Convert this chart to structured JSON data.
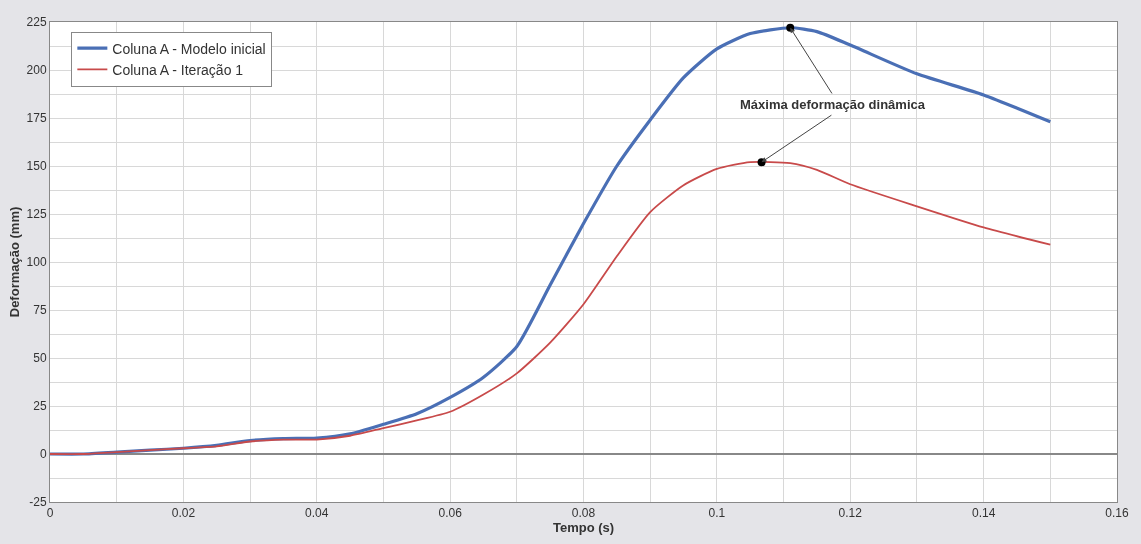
{
  "chart_data": {
    "type": "line",
    "xlabel": "Tempo (s)",
    "ylabel": "Deformação (mm)",
    "xlim": [
      0,
      0.16
    ],
    "ylim": [
      -25,
      225
    ],
    "xticks": [
      0,
      {
        "value": 0.01,
        "label": null
      },
      0.02,
      {
        "value": 0.03,
        "label": null
      },
      0.04,
      {
        "value": 0.05,
        "label": null
      },
      0.06,
      {
        "value": 0.07,
        "label": null
      },
      0.08,
      {
        "value": 0.09,
        "label": null
      },
      0.1,
      {
        "value": 0.11,
        "label": null
      },
      0.12,
      {
        "value": 0.13,
        "label": null
      },
      0.14,
      {
        "value": 0.15,
        "label": null
      },
      0.16
    ],
    "yticks": [
      -25,
      {
        "value": -12.5,
        "label": null
      },
      0,
      {
        "value": 12.5,
        "label": null
      },
      25,
      {
        "value": 37.5,
        "label": null
      },
      50,
      {
        "value": 62.5,
        "label": null
      },
      75,
      {
        "value": 87.5,
        "label": null
      },
      100,
      {
        "value": 112.5,
        "label": null
      },
      125,
      {
        "value": 137.5,
        "label": null
      },
      150,
      {
        "value": 162.5,
        "label": null
      },
      175,
      {
        "value": 187.5,
        "label": null
      },
      200,
      {
        "value": 212.5,
        "label": null
      },
      225
    ],
    "grid": true,
    "legend": "top left",
    "marker": "none",
    "line_style": "solid",
    "x": [
      0,
      0.005,
      0.01,
      0.015,
      0.02,
      0.025,
      0.03,
      0.035,
      0.04,
      0.045,
      0.05,
      0.055,
      0.06,
      0.065,
      0.07,
      0.075,
      0.08,
      0.085,
      0.09,
      0.095,
      0.1,
      0.105,
      0.111,
      0.115,
      0.12,
      0.13,
      0.14,
      0.15
    ],
    "series": [
      {
        "name": "Coluna A - Modelo inicial",
        "color": "#4a6fb5",
        "values": [
          0,
          0,
          1,
          2,
          3,
          4.5,
          7,
          8,
          8.3,
          10.5,
          15.5,
          21,
          29.5,
          40,
          56,
          88,
          120,
          150,
          174,
          196,
          211,
          219,
          222,
          220,
          213,
          198,
          187,
          173
        ]
      },
      {
        "name": "Coluna A - Iteração 1",
        "color": "#c84a4a",
        "values": [
          0,
          0,
          1,
          2,
          3,
          4,
          6.5,
          7.5,
          7.5,
          9.5,
          13.5,
          17.5,
          22,
          31,
          42,
          58,
          78,
          103,
          126,
          140,
          148.5,
          152,
          151.5,
          148,
          140.5,
          129,
          118,
          109
        ]
      },
      {
        "type": "scatter",
        "marker": "circle",
        "color": "#000000",
        "x": [
          0.111,
          0.1067
        ],
        "values": [
          222,
          152
        ]
      }
    ],
    "annotations": [
      {
        "text": "Máxima deformação dinâmica",
        "x": 0.111,
        "y": 222
      }
    ]
  }
}
